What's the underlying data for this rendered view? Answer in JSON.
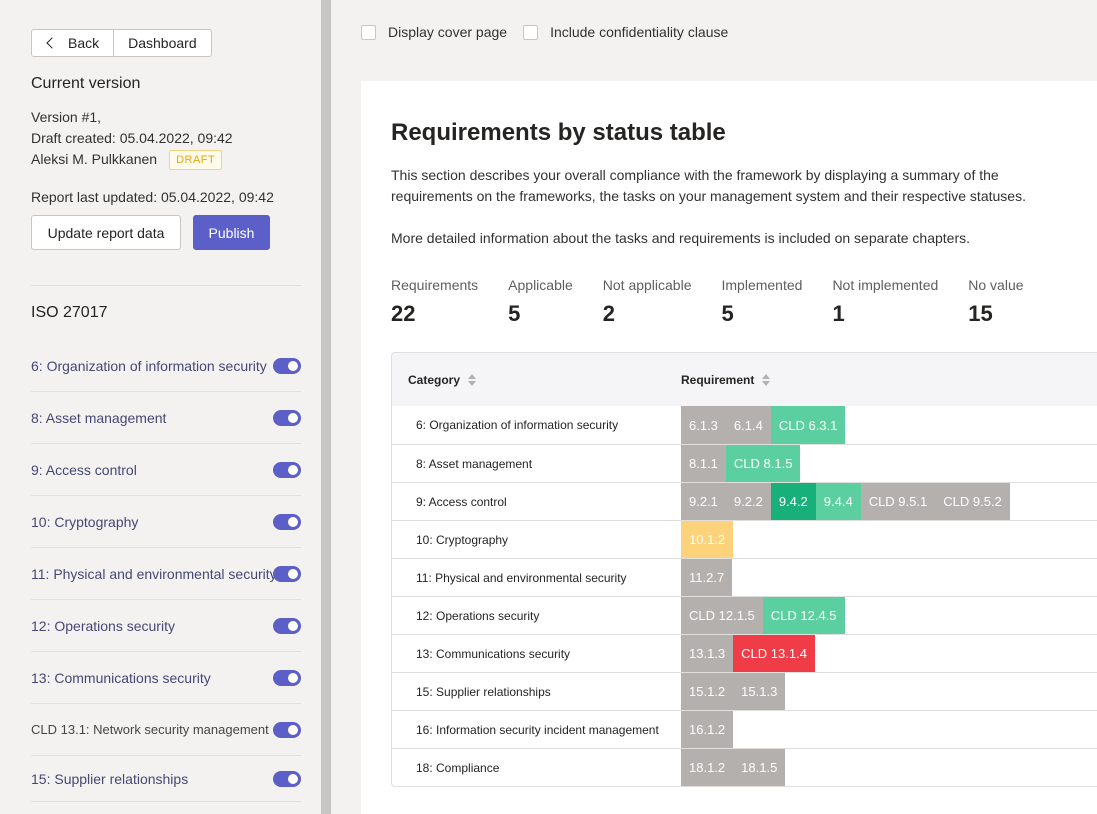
{
  "nav": {
    "back_label": "Back",
    "dashboard_label": "Dashboard"
  },
  "version": {
    "title": "Current version",
    "version_line": "Version #1,",
    "draft_line": "Draft created: 05.04.2022, 09:42",
    "author": "Aleksi M. Pulkkanen",
    "badge": "DRAFT",
    "updated_line": "Report last updated: 05.04.2022, 09:42",
    "update_button": "Update report data",
    "publish_button": "Publish"
  },
  "framework": {
    "title": "ISO 27017",
    "items": [
      {
        "label": "6: Organization of information security",
        "sub": false,
        "enabled": true
      },
      {
        "label": "8: Asset management",
        "sub": false,
        "enabled": true
      },
      {
        "label": "9: Access control",
        "sub": false,
        "enabled": true
      },
      {
        "label": "10: Cryptography",
        "sub": false,
        "enabled": true
      },
      {
        "label": "11: Physical and environmental security",
        "sub": false,
        "enabled": true
      },
      {
        "label": "12: Operations security",
        "sub": false,
        "enabled": true
      },
      {
        "label": "13: Communications security",
        "sub": false,
        "enabled": true
      },
      {
        "label": "CLD 13.1: Network security management",
        "sub": true,
        "enabled": true
      },
      {
        "label": "15: Supplier relationships",
        "sub": false,
        "enabled": true
      }
    ]
  },
  "options": {
    "cover_page": "Display cover page",
    "confidentiality": "Include confidentiality clause"
  },
  "section": {
    "title": "Requirements by status table",
    "desc1": "This section describes your overall compliance with the framework by displaying a summary of the requirements on the frameworks, the tasks on your management system and their respective statuses.",
    "desc2": "More detailed information about the tasks and requirements is included on separate chapters."
  },
  "stats": [
    {
      "label": "Requirements",
      "value": "22"
    },
    {
      "label": "Applicable",
      "value": "5"
    },
    {
      "label": "Not applicable",
      "value": "2"
    },
    {
      "label": "Implemented",
      "value": "5"
    },
    {
      "label": "Not implemented",
      "value": "1"
    },
    {
      "label": "No value",
      "value": "15"
    }
  ],
  "colors": {
    "grey": "#b3b0ad",
    "green": "#5ccfa0",
    "dgreen": "#17b07a",
    "yellow": "#fcd37a",
    "red": "#f03c47",
    "accent": "#5b5fc7"
  },
  "table": {
    "headers": {
      "category": "Category",
      "requirement": "Requirement"
    },
    "rows": [
      {
        "category": "6: Organization of information security",
        "reqs": [
          {
            "id": "6.1.3",
            "status": "grey"
          },
          {
            "id": "6.1.4",
            "status": "grey"
          },
          {
            "id": "CLD 6.3.1",
            "status": "green"
          }
        ]
      },
      {
        "category": "8: Asset management",
        "reqs": [
          {
            "id": "8.1.1",
            "status": "grey"
          },
          {
            "id": "CLD 8.1.5",
            "status": "green"
          }
        ]
      },
      {
        "category": "9: Access control",
        "reqs": [
          {
            "id": "9.2.1",
            "status": "grey"
          },
          {
            "id": "9.2.2",
            "status": "grey"
          },
          {
            "id": "9.4.2",
            "status": "dgreen"
          },
          {
            "id": "9.4.4",
            "status": "green"
          },
          {
            "id": "CLD 9.5.1",
            "status": "grey"
          },
          {
            "id": "CLD 9.5.2",
            "status": "grey"
          }
        ]
      },
      {
        "category": "10: Cryptography",
        "reqs": [
          {
            "id": "10.1.2",
            "status": "yellow"
          }
        ]
      },
      {
        "category": "11: Physical and environmental security",
        "reqs": [
          {
            "id": "11.2.7",
            "status": "grey"
          }
        ]
      },
      {
        "category": "12: Operations security",
        "reqs": [
          {
            "id": "CLD 12.1.5",
            "status": "grey"
          },
          {
            "id": "CLD 12.4.5",
            "status": "green"
          }
        ]
      },
      {
        "category": "13: Communications security",
        "reqs": [
          {
            "id": "13.1.3",
            "status": "grey"
          },
          {
            "id": "CLD 13.1.4",
            "status": "red"
          }
        ]
      },
      {
        "category": "15: Supplier relationships",
        "reqs": [
          {
            "id": "15.1.2",
            "status": "grey"
          },
          {
            "id": "15.1.3",
            "status": "grey"
          }
        ]
      },
      {
        "category": "16: Information security incident management",
        "reqs": [
          {
            "id": "16.1.2",
            "status": "grey"
          }
        ]
      },
      {
        "category": "18: Compliance",
        "reqs": [
          {
            "id": "18.1.2",
            "status": "grey"
          },
          {
            "id": "18.1.5",
            "status": "grey"
          }
        ]
      }
    ]
  }
}
